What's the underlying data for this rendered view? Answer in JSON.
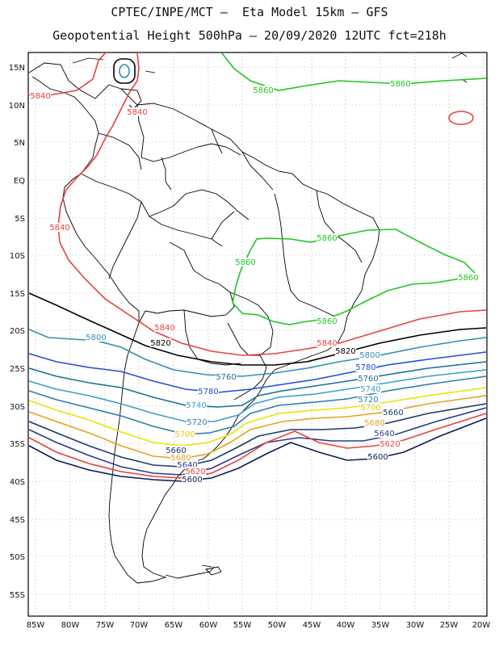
{
  "title": {
    "line1": "CPTEC/INPE/MCT –  Eta Model 15km – GFS",
    "line2": "Geopotential Height 500hPa – 20/09/2020 12UTC fct=218h"
  },
  "lat_labels": [
    "15N",
    "10N",
    "5N",
    "EQ",
    "5S",
    "10S",
    "15S",
    "20S",
    "25S",
    "30S",
    "35S",
    "40S",
    "45S",
    "50S",
    "55S"
  ],
  "lon_labels": [
    "85W",
    "80W",
    "75W",
    "70W",
    "65W",
    "60W",
    "55W",
    "50W",
    "45W",
    "40W",
    "35W",
    "30W",
    "25W",
    "20W"
  ],
  "contour_labels": [
    {
      "text": "5840",
      "color": "#e8413b"
    },
    {
      "text": "5840",
      "color": "#e8413b"
    },
    {
      "text": "5840",
      "color": "#e8413b"
    },
    {
      "text": "5840",
      "color": "#e8413b"
    },
    {
      "text": "5840",
      "color": "#e8413b"
    },
    {
      "text": "5860",
      "color": "#1ec81e"
    },
    {
      "text": "5860",
      "color": "#1ec81e"
    },
    {
      "text": "5860",
      "color": "#1ec81e"
    },
    {
      "text": "5860",
      "color": "#1ec81e"
    },
    {
      "text": "5860",
      "color": "#1ec81e"
    },
    {
      "text": "5860",
      "color": "#1ec81e"
    },
    {
      "text": "5820",
      "color": "#000000"
    },
    {
      "text": "5820",
      "color": "#000000"
    },
    {
      "text": "5800",
      "color": "#2f8fb5"
    },
    {
      "text": "5800",
      "color": "#2f8fb5"
    },
    {
      "text": "5780",
      "color": "#1e4fd8"
    },
    {
      "text": "5780",
      "color": "#1e4fd8"
    },
    {
      "text": "5760",
      "color": "#1a6f9a"
    },
    {
      "text": "5760",
      "color": "#1a6f9a"
    },
    {
      "text": "5740",
      "color": "#3aa0c8"
    },
    {
      "text": "5740",
      "color": "#3aa0c8"
    },
    {
      "text": "5720",
      "color": "#2a7fa8"
    },
    {
      "text": "5720",
      "color": "#2a7fa8"
    },
    {
      "text": "5700",
      "color": "#e6e600"
    },
    {
      "text": "5700",
      "color": "#e6e600"
    },
    {
      "text": "5680",
      "color": "#e6a020"
    },
    {
      "text": "5680",
      "color": "#e6a020"
    },
    {
      "text": "5660",
      "color": "#1a3a6a"
    },
    {
      "text": "5660",
      "color": "#1a3a6a"
    },
    {
      "text": "5640",
      "color": "#2a3a8a"
    },
    {
      "text": "5640",
      "color": "#2a3a8a"
    },
    {
      "text": "5620",
      "color": "#e8413b"
    },
    {
      "text": "5620",
      "color": "#e8413b"
    },
    {
      "text": "5600",
      "color": "#0a1a5a"
    },
    {
      "text": "5600",
      "color": "#0a1a5a"
    }
  ]
}
